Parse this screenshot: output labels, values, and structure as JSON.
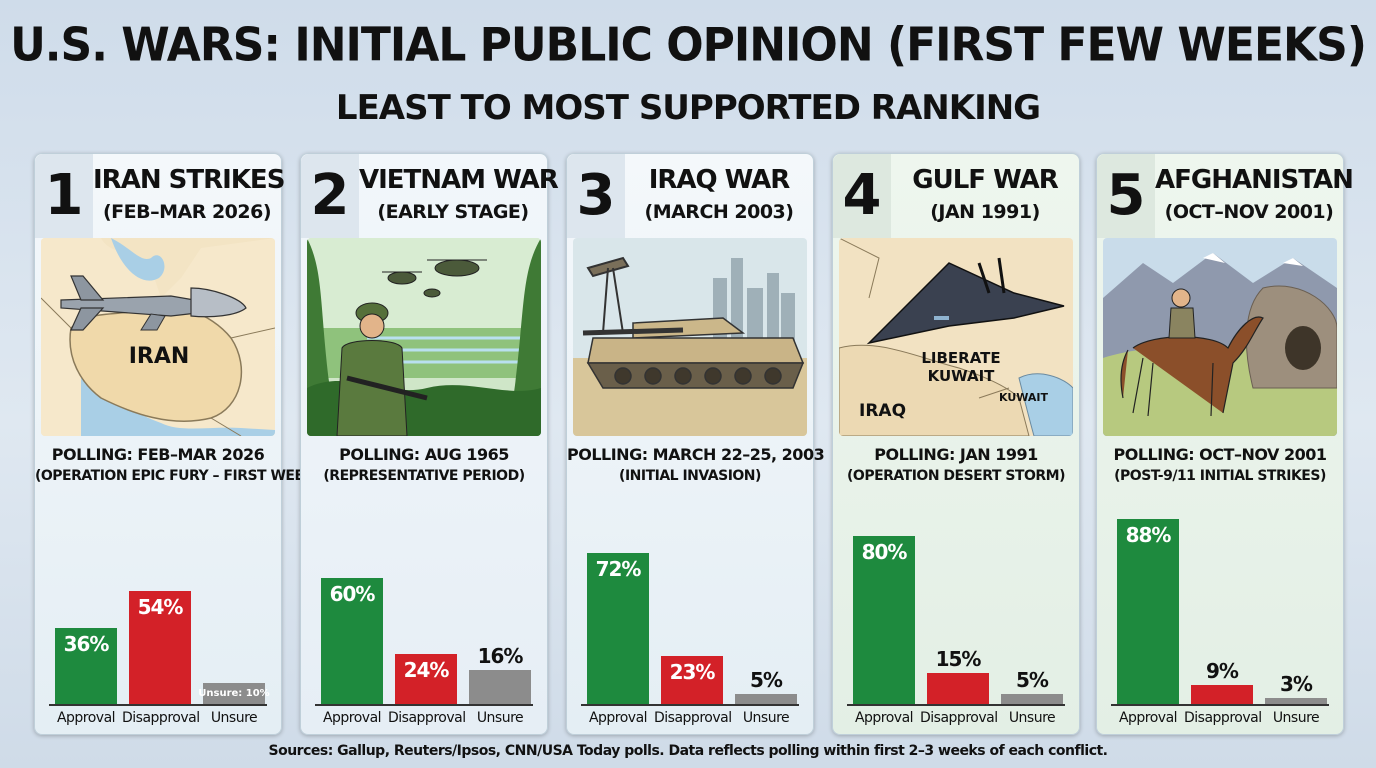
{
  "title": "U.S. WARS: INITIAL PUBLIC OPINION (FIRST FEW WEEKS)",
  "subtitle": "LEAST TO MOST SUPPORTED RANKING",
  "sources": "Sources: Gallup, Reuters/Ipsos, CNN/USA Today polls. Data reflects polling within first 2–3 weeks of each conflict.",
  "colors": {
    "approval": "#1e8a3e",
    "disapproval": "#d32128",
    "unsure": "#8c8c8c"
  },
  "cards": [
    {
      "rank": "1",
      "name": "IRAN STRIKES",
      "period": "(FEB–MAR 2026)",
      "map_labels": [
        "IRAN"
      ],
      "polling": "POLLING: FEB–MAR 2026",
      "polling_note": "(OPERATION EPIC FURY – FIRST WEEK)"
    },
    {
      "rank": "2",
      "name": "VIETNAM WAR",
      "period": "(EARLY STAGE)",
      "map_labels": [],
      "polling": "POLLING: AUG 1965",
      "polling_note": "(REPRESENTATIVE PERIOD)"
    },
    {
      "rank": "3",
      "name": "IRAQ WAR",
      "period": "(MARCH 2003)",
      "map_labels": [],
      "polling": "POLLING: MARCH 22–25, 2003",
      "polling_note": "(INITIAL INVASION)"
    },
    {
      "rank": "4",
      "name": "GULF WAR",
      "period": "(JAN 1991)",
      "map_labels": [
        "LIBERATE",
        "KUWAIT",
        "IRAQ",
        "KUWAIT"
      ],
      "polling": "POLLING: JAN 1991",
      "polling_note": "(OPERATION DESERT STORM)"
    },
    {
      "rank": "5",
      "name": "AFGHANISTAN",
      "period": "(OCT–NOV 2001)",
      "map_labels": [],
      "polling": "POLLING: OCT–NOV 2001",
      "polling_note": "(POST-9/11 INITIAL STRIKES)"
    }
  ],
  "chart_data": [
    {
      "type": "bar",
      "categories": [
        "Approval",
        "Disapproval",
        "Unsure"
      ],
      "values": [
        36,
        54,
        10
      ],
      "labels": [
        "36%",
        "54%",
        "Unsure: 10%"
      ]
    },
    {
      "type": "bar",
      "categories": [
        "Approval",
        "Disapproval",
        "Unsure"
      ],
      "values": [
        60,
        24,
        16
      ],
      "labels": [
        "60%",
        "24%",
        "16%"
      ]
    },
    {
      "type": "bar",
      "categories": [
        "Approval",
        "Disapproval",
        "Unsure"
      ],
      "values": [
        72,
        23,
        5
      ],
      "labels": [
        "72%",
        "23%",
        "5%"
      ]
    },
    {
      "type": "bar",
      "categories": [
        "Approval",
        "Disapproval",
        "Unsure"
      ],
      "values": [
        80,
        15,
        5
      ],
      "labels": [
        "80%",
        "15%",
        "5%"
      ]
    },
    {
      "type": "bar",
      "categories": [
        "Approval",
        "Disapproval",
        "Unsure"
      ],
      "values": [
        88,
        9,
        3
      ],
      "labels": [
        "88%",
        "9%",
        "3%"
      ]
    }
  ]
}
